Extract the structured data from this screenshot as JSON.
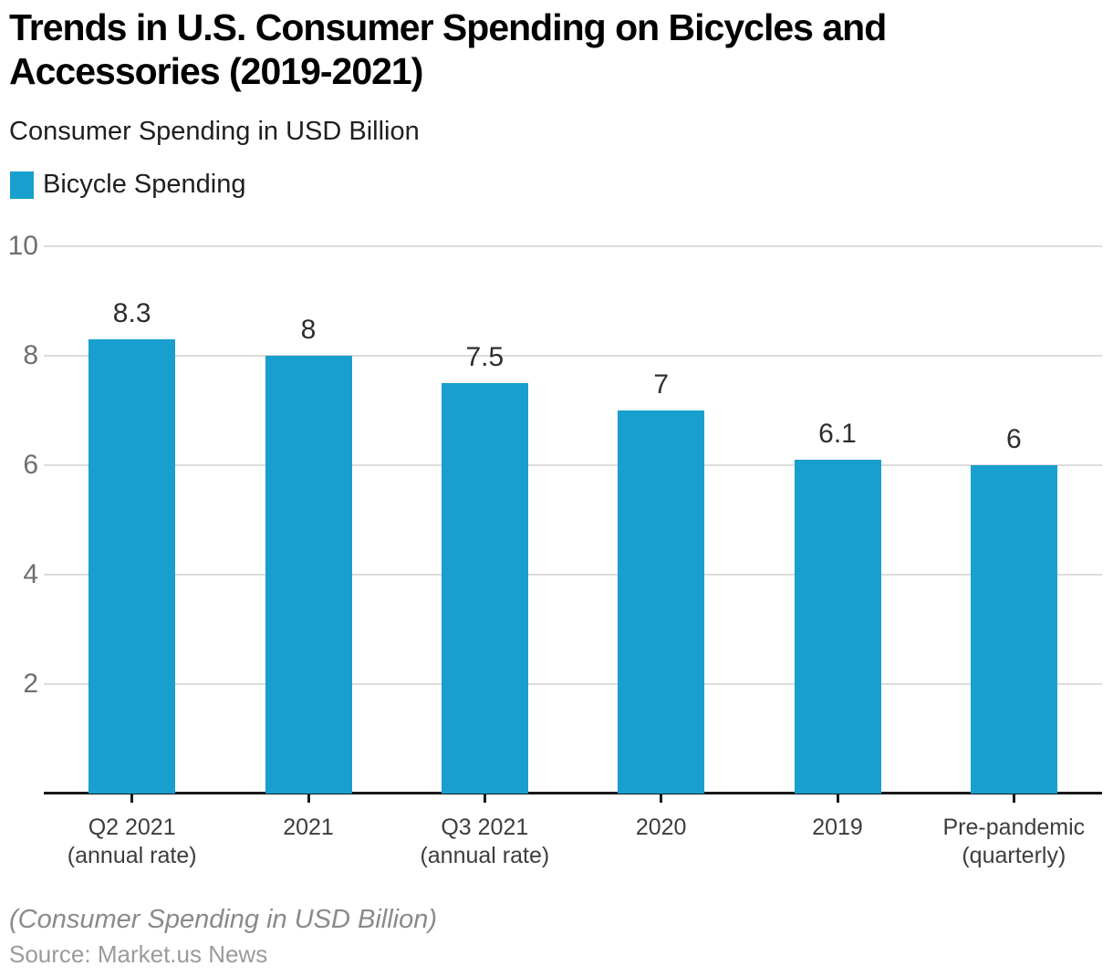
{
  "header": {
    "title": "Trends in U.S. Consumer Spending on Bicycles and Accessories (2019-2021)",
    "subtitle": "Consumer Spending in USD Billion"
  },
  "legend": {
    "label": "Bicycle Spending",
    "swatch_color": "#189FCD"
  },
  "chart_data": {
    "type": "bar",
    "title": "Trends in U.S. Consumer Spending on Bicycles and Accessories (2019-2021)",
    "subtitle": "Consumer Spending in USD Billion",
    "series_name": "Bicycle Spending",
    "categories": [
      "Q2 2021\n(annual rate)",
      "2021",
      "Q3 2021\n(annual rate)",
      "2020",
      "2019",
      "Pre-pandemic\n(quarterly)"
    ],
    "values": [
      8.3,
      8,
      7.5,
      7,
      6.1,
      6
    ],
    "data_labels": [
      "8.3",
      "8",
      "7.5",
      "7",
      "6.1",
      "6"
    ],
    "xlabel": "",
    "ylabel": "",
    "ylim": [
      0,
      10
    ],
    "yticks": [
      2,
      4,
      6,
      8,
      10
    ],
    "grid": true,
    "legend_position": "top-left",
    "bar_color": "#189FCD",
    "gridline_color": "#dcdcdc",
    "axis_color": "#1a1a1a"
  },
  "footer": {
    "note": "(Consumer Spending in USD Billion)",
    "source": "Source: Market.us News"
  }
}
